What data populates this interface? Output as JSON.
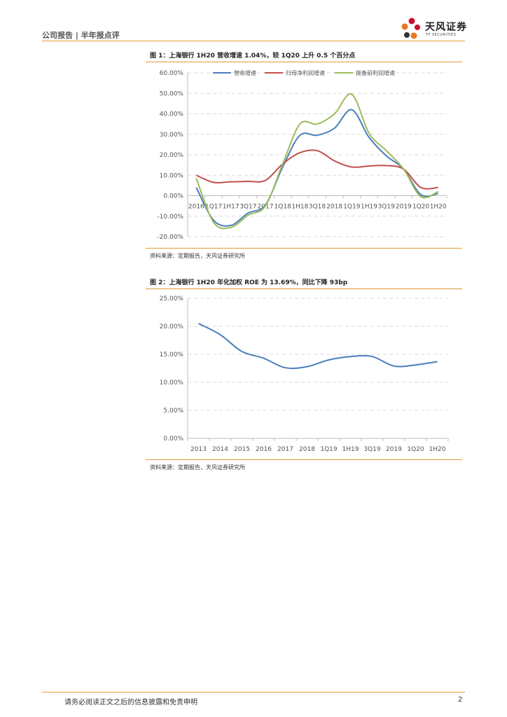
{
  "header": {
    "report_type": "公司报告 | 半年报点评",
    "brand_name": "天风证券",
    "brand_sub": "TF SECURITIES"
  },
  "colors": {
    "accent": "#e09a3a",
    "series_blue": "#4a7ebb",
    "series_red": "#c0504d",
    "series_green": "#9bbb59",
    "logo_red": "#c8102e",
    "logo_orange": "#e87722",
    "logo_dark": "#333333"
  },
  "figures": [
    {
      "title": "图 1：上海银行 1H20 营收增速 1.04%，较 1Q20 上升 0.5 个百分点",
      "source": "资料来源：定期报告，天风证券研究所"
    },
    {
      "title": "图 2：上海银行 1H20 年化加权 ROE 为 13.69%，同比下降 93bp",
      "source": "资料来源：定期报告，天风证券研究所"
    }
  ],
  "chart_data": [
    {
      "type": "line",
      "title": "图 1：上海银行 1H20 营收增速 1.04%，较 1Q20 上升 0.5 个百分点",
      "categories": [
        "2016",
        "1Q17",
        "1H17",
        "3Q17",
        "2017",
        "1Q18",
        "1H18",
        "3Q18",
        "2018",
        "1Q19",
        "1H19",
        "3Q19",
        "2019",
        "1Q20",
        "1H20"
      ],
      "ylim": [
        -20,
        60
      ],
      "yticks": [
        "60.00%",
        "50.00%",
        "40.00%",
        "30.00%",
        "20.00%",
        "10.00%",
        "0.00%",
        "-10.00%",
        "-20.00%"
      ],
      "ytick_values": [
        60,
        50,
        40,
        30,
        20,
        10,
        0,
        -10,
        -20
      ],
      "legend_position": "top",
      "series": [
        {
          "name": "营收增速",
          "values": [
            4.0,
            -12.0,
            -14.5,
            -8.5,
            -4.5,
            14.0,
            29.5,
            29.5,
            33.0,
            42.0,
            28.5,
            19.5,
            13.0,
            0.5,
            1.04
          ]
        },
        {
          "name": "归母净利润增速",
          "values": [
            10.0,
            6.5,
            6.8,
            7.0,
            7.5,
            15.5,
            21.0,
            22.0,
            17.0,
            14.0,
            14.5,
            14.7,
            13.0,
            4.0,
            4.0
          ]
        },
        {
          "name": "拨备前利润增速",
          "values": [
            8.5,
            -13.0,
            -15.5,
            -9.5,
            -5.0,
            15.5,
            35.0,
            35.0,
            40.0,
            49.5,
            30.5,
            22.0,
            13.0,
            -0.5,
            2.0
          ]
        }
      ]
    },
    {
      "type": "line",
      "title": "图 2：上海银行 1H20 年化加权 ROE 为 13.69%，同比下降 93bp",
      "categories": [
        "2013",
        "2014",
        "2015",
        "2016",
        "2017",
        "2018",
        "1Q19",
        "1H19",
        "3Q19",
        "2019",
        "1Q20",
        "1H20"
      ],
      "ylim": [
        0,
        25
      ],
      "yticks": [
        "25.00%",
        "20.00%",
        "15.00%",
        "10.00%",
        "5.00%",
        "0.00%"
      ],
      "ytick_values": [
        25,
        20,
        15,
        10,
        5,
        0
      ],
      "series": [
        {
          "name": "年化加权ROE",
          "values": [
            20.5,
            18.5,
            15.5,
            14.3,
            12.6,
            12.8,
            14.0,
            14.6,
            14.6,
            12.9,
            13.1,
            13.69
          ]
        }
      ]
    }
  ],
  "footer": {
    "disclaimer": "请务必阅读正文之后的信息披露和免责申明",
    "page_number": "2"
  }
}
